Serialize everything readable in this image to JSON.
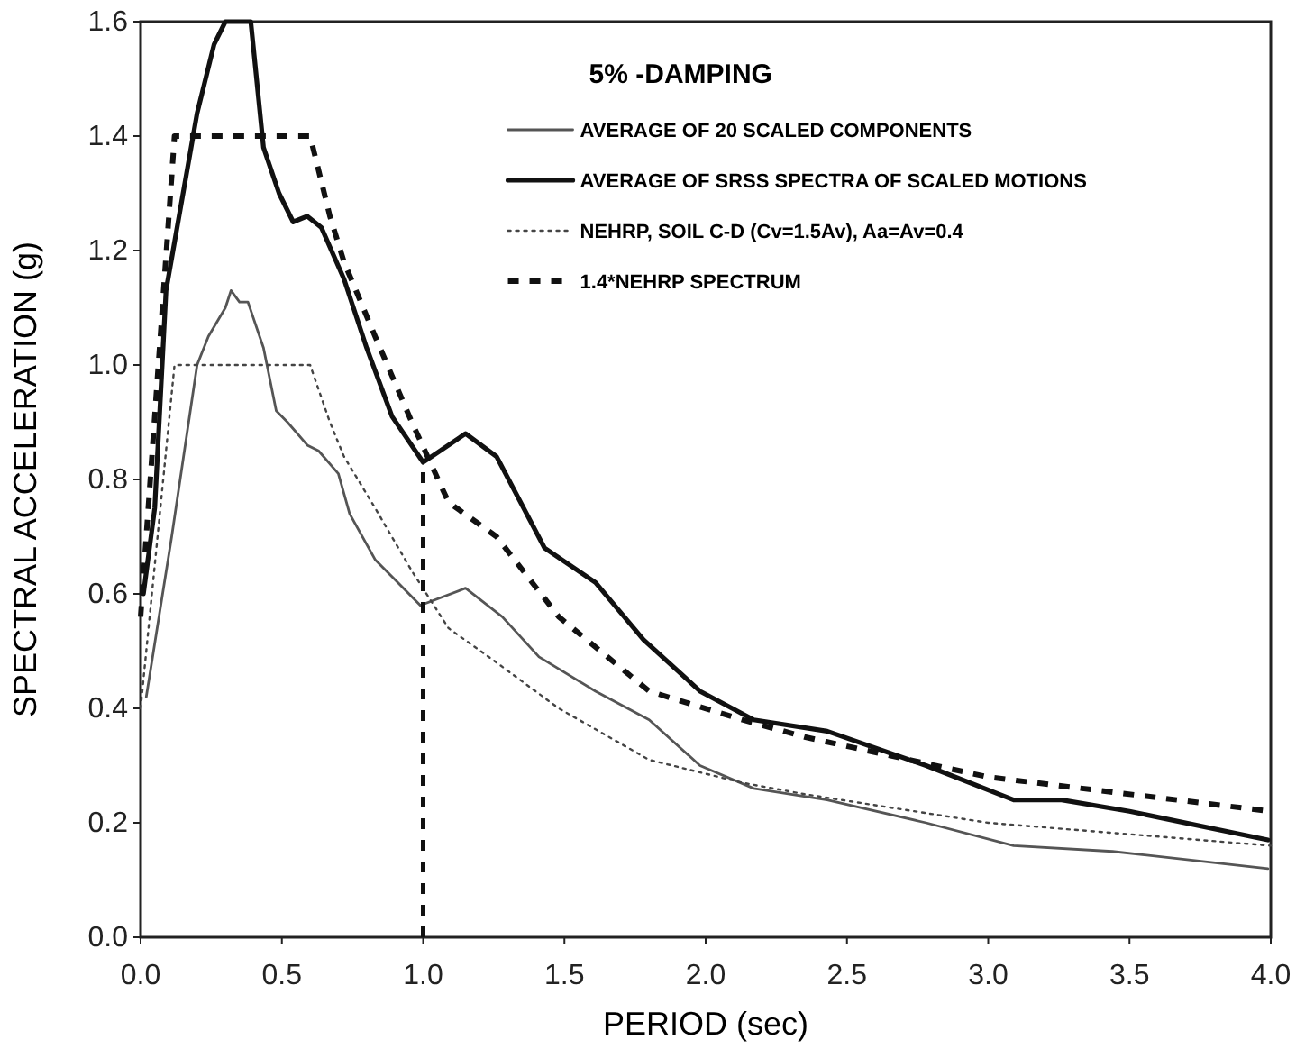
{
  "chart_data": {
    "type": "line",
    "xlabel": "PERIOD (sec)",
    "ylabel": "SPECTRAL ACCELERATION (g)",
    "legend_title": "5% -DAMPING",
    "legend": "top right",
    "grid": false,
    "xlim": [
      0,
      4
    ],
    "ylim": [
      0,
      1.6
    ],
    "xticks": [
      {
        "value": 0,
        "label": "0.0"
      },
      {
        "value": 0.5,
        "label": "0.5"
      },
      {
        "value": 1,
        "label": "1.0"
      },
      {
        "value": 1.5,
        "label": "1.5"
      },
      {
        "value": 2,
        "label": "2.0"
      },
      {
        "value": 2.5,
        "label": "2.5"
      },
      {
        "value": 3,
        "label": "3.0"
      },
      {
        "value": 3.5,
        "label": "3.5"
      },
      {
        "value": 4,
        "label": "4.0"
      }
    ],
    "yticks": [
      {
        "value": 0,
        "label": "0.0"
      },
      {
        "value": 0.2,
        "label": "0.2"
      },
      {
        "value": 0.4,
        "label": "0.4"
      },
      {
        "value": 0.6,
        "label": "0.6"
      },
      {
        "value": 0.8,
        "label": "0.8"
      },
      {
        "value": 1,
        "label": "1.0"
      },
      {
        "value": 1.2,
        "label": "1.2"
      },
      {
        "value": 1.4,
        "label": "1.4"
      },
      {
        "value": 1.6,
        "label": "1.6"
      }
    ],
    "series": [
      {
        "name": "AVERAGE OF 20 SCALED COMPONENTS",
        "color": "#555555",
        "line_style": "solid",
        "x": [
          0.02,
          0.11,
          0.2,
          0.24,
          0.3,
          0.32,
          0.35,
          0.38,
          0.435,
          0.48,
          0.52,
          0.59,
          0.63,
          0.7,
          0.74,
          0.83,
          0.91,
          0.99,
          1.15,
          1.28,
          1.41,
          1.61,
          1.8,
          1.98,
          2.17,
          2.43,
          2.78,
          3.09,
          3.44,
          3.99
        ],
        "values": [
          0.42,
          0.7,
          1.0,
          1.05,
          1.1,
          1.13,
          1.11,
          1.11,
          1.03,
          0.92,
          0.9,
          0.86,
          0.85,
          0.81,
          0.74,
          0.66,
          0.62,
          0.58,
          0.61,
          0.56,
          0.49,
          0.43,
          0.38,
          0.3,
          0.26,
          0.24,
          0.2,
          0.16,
          0.15,
          0.12
        ]
      },
      {
        "name": "AVERAGE OF SRSS SPECTRA OF SCALED MOTIONS",
        "color": "#111111",
        "line_style": "solid",
        "x": [
          0.01,
          0.05,
          0.09,
          0.2,
          0.26,
          0.3,
          0.39,
          0.435,
          0.49,
          0.54,
          0.59,
          0.64,
          0.72,
          0.8,
          0.89,
          1.0,
          1.15,
          1.26,
          1.43,
          1.61,
          1.78,
          1.98,
          2.17,
          2.43,
          2.78,
          3.09,
          3.26,
          3.5,
          3.99
        ],
        "values": [
          0.6,
          0.75,
          1.13,
          1.44,
          1.56,
          1.6,
          1.6,
          1.38,
          1.3,
          1.25,
          1.26,
          1.24,
          1.15,
          1.03,
          0.91,
          0.83,
          0.88,
          0.84,
          0.68,
          0.62,
          0.52,
          0.43,
          0.38,
          0.36,
          0.3,
          0.24,
          0.24,
          0.22,
          0.17
        ]
      },
      {
        "name": "NEHRP, SOIL C-D (Cv=1.5Av), Aa=Av=0.4",
        "color": "#444444",
        "line_style": "dotted",
        "x": [
          0,
          0.12,
          0.6,
          0.67,
          0.72,
          0.83,
          0.96,
          1.09,
          1.26,
          1.48,
          1.8,
          2.13,
          2.35,
          3.0,
          4.0
        ],
        "values": [
          0.4,
          1.0,
          1.0,
          0.9,
          0.84,
          0.75,
          0.64,
          0.54,
          0.48,
          0.4,
          0.31,
          0.27,
          0.25,
          0.2,
          0.16
        ]
      },
      {
        "name": "1.4*NEHRP SPECTRUM",
        "color": "#111111",
        "line_style": "dashed",
        "x": [
          0,
          0.12,
          0.6,
          0.67,
          0.72,
          0.83,
          0.96,
          1.09,
          1.26,
          1.48,
          1.8,
          2.13,
          2.35,
          3.0,
          4.0
        ],
        "values": [
          0.56,
          1.4,
          1.4,
          1.26,
          1.18,
          1.05,
          0.9,
          0.76,
          0.7,
          0.56,
          0.43,
          0.38,
          0.35,
          0.28,
          0.22
        ]
      },
      {
        "color": "#111111",
        "line_style": "dashed",
        "x": [
          1,
          1
        ],
        "values": [
          0,
          0.83
        ]
      }
    ]
  }
}
